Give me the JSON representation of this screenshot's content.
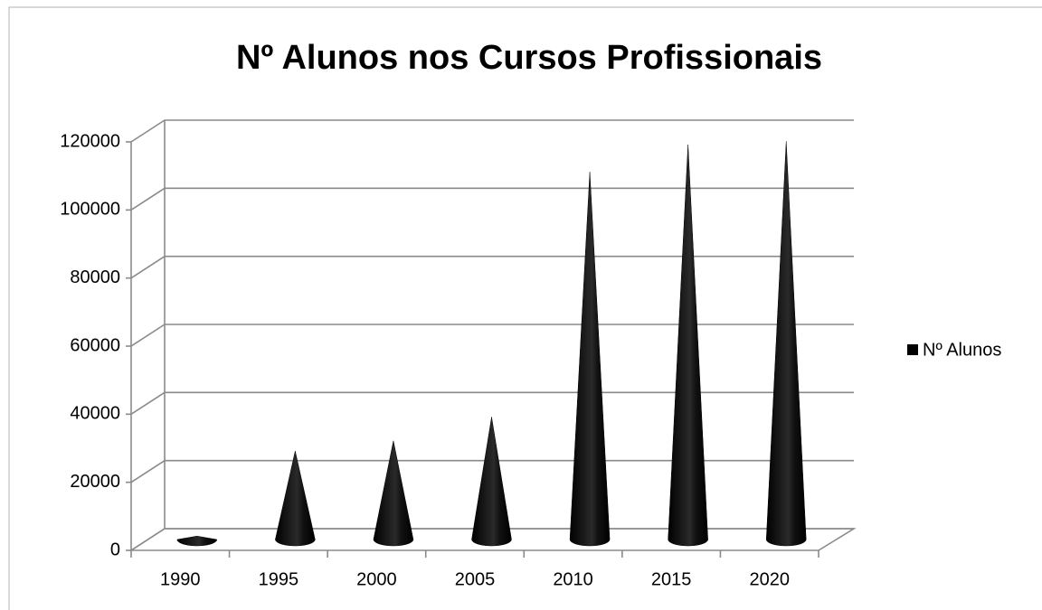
{
  "chart_data": {
    "type": "cone",
    "title": "Nº Alunos nos Cursos Profissionais",
    "categories": [
      "1990",
      "1995",
      "2000",
      "2005",
      "2010",
      "2015",
      "2020"
    ],
    "series": [
      {
        "name": "Nº Alunos",
        "color": "#000000",
        "values": [
          1000,
          26000,
          29000,
          36000,
          108000,
          116000,
          117000
        ]
      }
    ],
    "ylim": [
      0,
      120000
    ],
    "yticks": [
      0,
      20000,
      40000,
      60000,
      80000,
      100000,
      120000
    ],
    "grid": true,
    "legend": "right"
  }
}
